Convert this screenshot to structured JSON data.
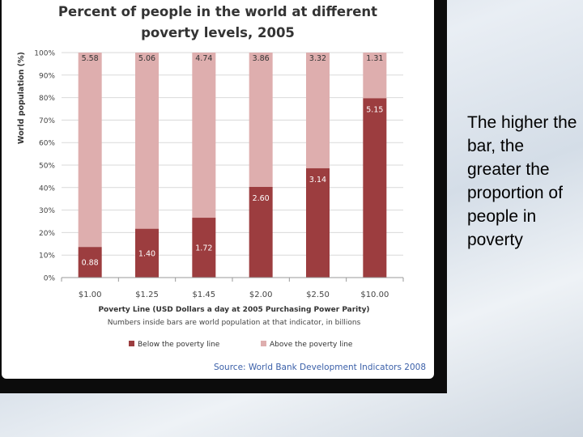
{
  "caption": "The higher the bar, the greater the proportion of people in poverty",
  "colors": {
    "below": "#9c3d3f",
    "above": "#deaeae",
    "text_dark": "#2a2a2a",
    "source": "#3a5fa8"
  },
  "chart_data": {
    "type": "bar",
    "stacked": true,
    "title_line1": "Percent of people in the world at different",
    "title_line2": "poverty levels, 2005",
    "ylabel": "World population (%)",
    "xlabel": "Poverty Line (USD Dollars a day at 2005 Purchasing Power Parity)",
    "note": "Numbers inside bars are world population at that indicator, in billions",
    "source": "Source: World Bank Development Indicators 2008",
    "ylim": [
      0,
      100
    ],
    "yticks": [
      "0%",
      "10%",
      "20%",
      "30%",
      "40%",
      "50%",
      "60%",
      "70%",
      "80%",
      "90%",
      "100%"
    ],
    "categories": [
      "$1.00",
      "$1.25",
      "$1.45",
      "$2.00",
      "$2.50",
      "$10.00"
    ],
    "series": [
      {
        "name": "Below the poverty line",
        "percent": [
          13.6,
          21.7,
          26.6,
          40.3,
          48.6,
          79.7
        ],
        "labels": [
          "0.88",
          "1.40",
          "1.72",
          "2.60",
          "3.14",
          "5.15"
        ]
      },
      {
        "name": "Above the poverty line",
        "percent": [
          86.4,
          78.3,
          73.4,
          59.7,
          51.4,
          20.3
        ],
        "labels": [
          "5.58",
          "5.06",
          "4.74",
          "3.86",
          "3.32",
          "1.31"
        ]
      }
    ],
    "legend_position": "bottom"
  }
}
